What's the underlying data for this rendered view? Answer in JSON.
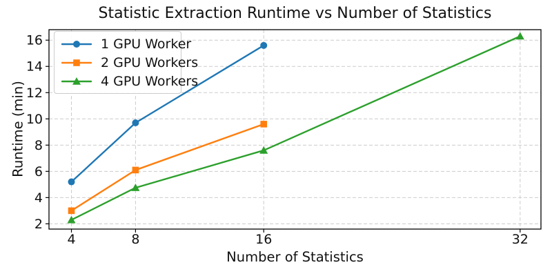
{
  "chart_data": {
    "type": "line",
    "title": "Statistic Extraction Runtime vs Number of Statistics",
    "xlabel": "Number of Statistics",
    "ylabel": "Runtime (min)",
    "x_ticks": [
      4,
      8,
      16,
      32
    ],
    "y_ticks": [
      2,
      4,
      6,
      8,
      10,
      12,
      14,
      16
    ],
    "xlim": [
      2.6,
      33.3
    ],
    "ylim": [
      1.6,
      16.8
    ],
    "grid": true,
    "grid_color": "#cccccc",
    "grid_style": "dashed",
    "axis_color": "#000000",
    "tick_label_color": "#111111",
    "legend_position": "upper-left",
    "series": [
      {
        "name": "1 GPU Worker",
        "color": "#1f77b4",
        "marker": "circle",
        "x": [
          4,
          8,
          16
        ],
        "y": [
          5.2,
          9.7,
          15.6
        ]
      },
      {
        "name": "2 GPU Workers",
        "color": "#ff7f0e",
        "marker": "square",
        "x": [
          4,
          8,
          16
        ],
        "y": [
          3.0,
          6.1,
          9.6
        ]
      },
      {
        "name": "4 GPU Workers",
        "color": "#2ca02c",
        "marker": "triangle",
        "x": [
          4,
          8,
          16,
          32
        ],
        "y": [
          2.3,
          4.75,
          7.6,
          16.3
        ]
      }
    ]
  }
}
